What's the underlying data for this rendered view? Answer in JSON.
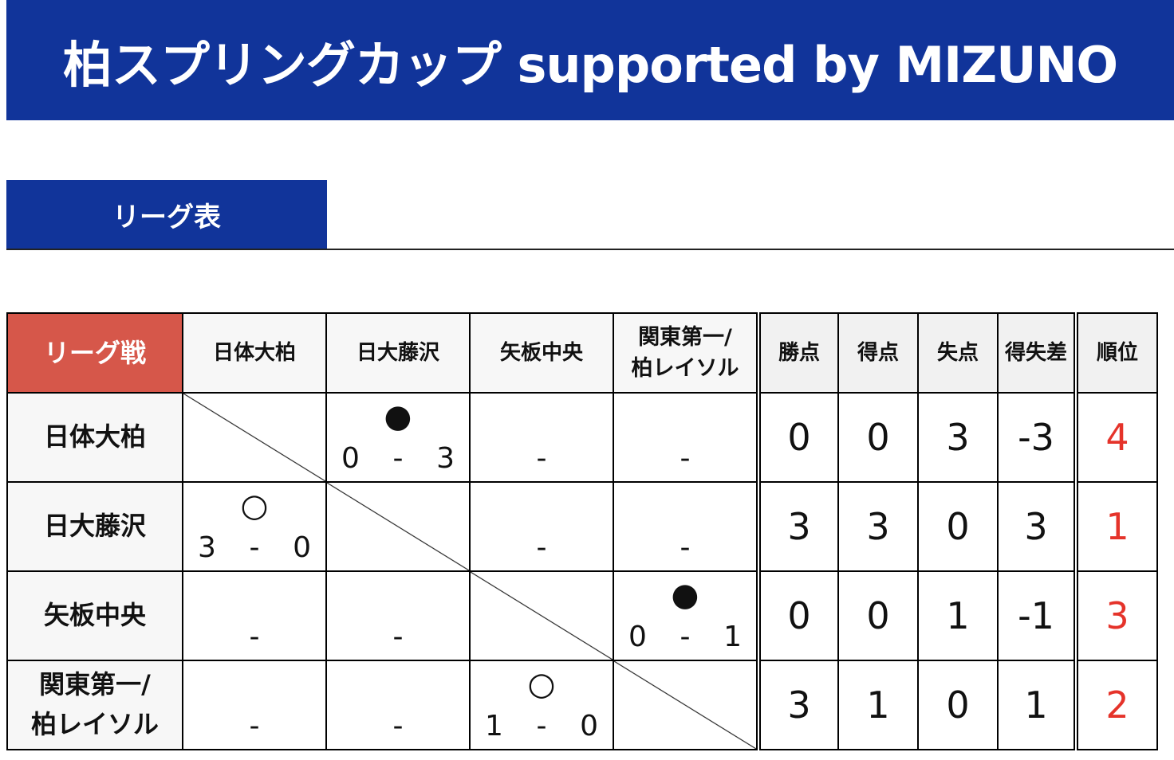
{
  "header": {
    "title": "柏スプリングカップ supported by MIZUNO"
  },
  "section": {
    "tab_label": "リーグ表"
  },
  "league": {
    "corner_label": "リーグ戦",
    "teams": [
      "日体大柏",
      "日大藤沢",
      "矢板中央",
      "関東第一/\n柏レイソル"
    ],
    "stat_headers": [
      "勝点",
      "得点",
      "失点",
      "得失差",
      "順位"
    ],
    "rows": [
      {
        "team": "日体大柏",
        "results": [
          null,
          {
            "symbol": "●",
            "home": "0",
            "sep": "-",
            "away": "3"
          },
          {
            "dash": "-"
          },
          {
            "dash": "-"
          }
        ],
        "stats": [
          "0",
          "0",
          "3",
          "-3"
        ],
        "rank": "4"
      },
      {
        "team": "日大藤沢",
        "results": [
          {
            "symbol": "○",
            "home": "3",
            "sep": "-",
            "away": "0"
          },
          null,
          {
            "dash": "-"
          },
          {
            "dash": "-"
          }
        ],
        "stats": [
          "3",
          "3",
          "0",
          "3"
        ],
        "rank": "1"
      },
      {
        "team": "矢板中央",
        "results": [
          {
            "dash": "-"
          },
          {
            "dash": "-"
          },
          null,
          {
            "symbol": "●",
            "home": "0",
            "sep": "-",
            "away": "1"
          }
        ],
        "stats": [
          "0",
          "0",
          "1",
          "-1"
        ],
        "rank": "3"
      },
      {
        "team": "関東第一/\n柏レイソル",
        "results": [
          {
            "dash": "-"
          },
          {
            "dash": "-"
          },
          {
            "symbol": "○",
            "home": "1",
            "sep": "-",
            "away": "0"
          },
          null
        ],
        "stats": [
          "3",
          "1",
          "0",
          "1"
        ],
        "rank": "2"
      }
    ]
  },
  "colors": {
    "brand_blue": "#11349a",
    "corner_red": "#d6574a",
    "rank_red": "#e5332a"
  }
}
